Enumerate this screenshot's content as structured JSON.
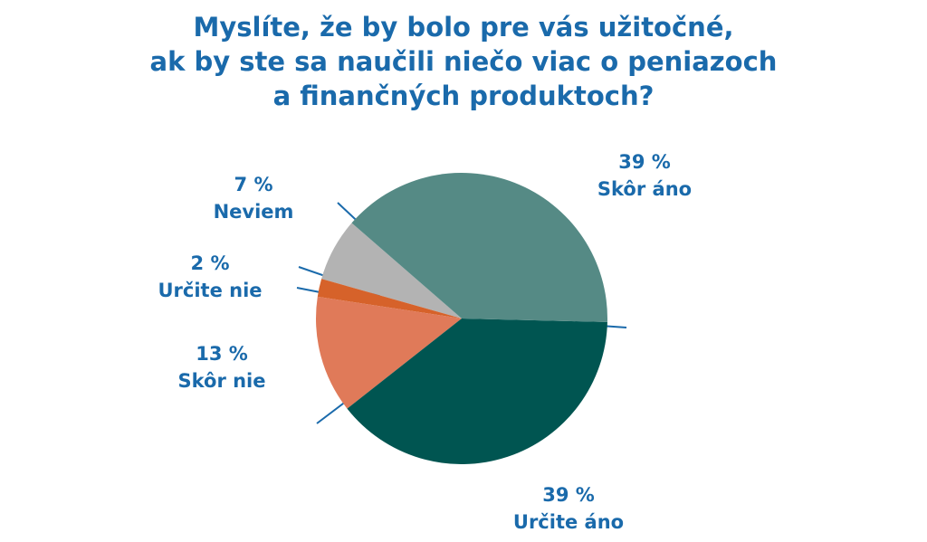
{
  "chart_data": {
    "type": "pie",
    "title": [
      "Myslíte, že by bolo pre vás užitočné,",
      "ak by ste sa naučili niečo viac o peniazoch",
      "a finančných produktoch?"
    ],
    "categories": [
      "Skôr áno",
      "Určite áno",
      "Skôr nie",
      "Určite nie",
      "Neviem"
    ],
    "values": [
      39,
      39,
      13,
      2,
      7
    ],
    "value_labels": [
      "39 %",
      "39 %",
      "13 %",
      "2 %",
      "7 %"
    ],
    "colors": [
      "#558a85",
      "#005551",
      "#e07a59",
      "#d6622a",
      "#b3b3b3"
    ]
  }
}
